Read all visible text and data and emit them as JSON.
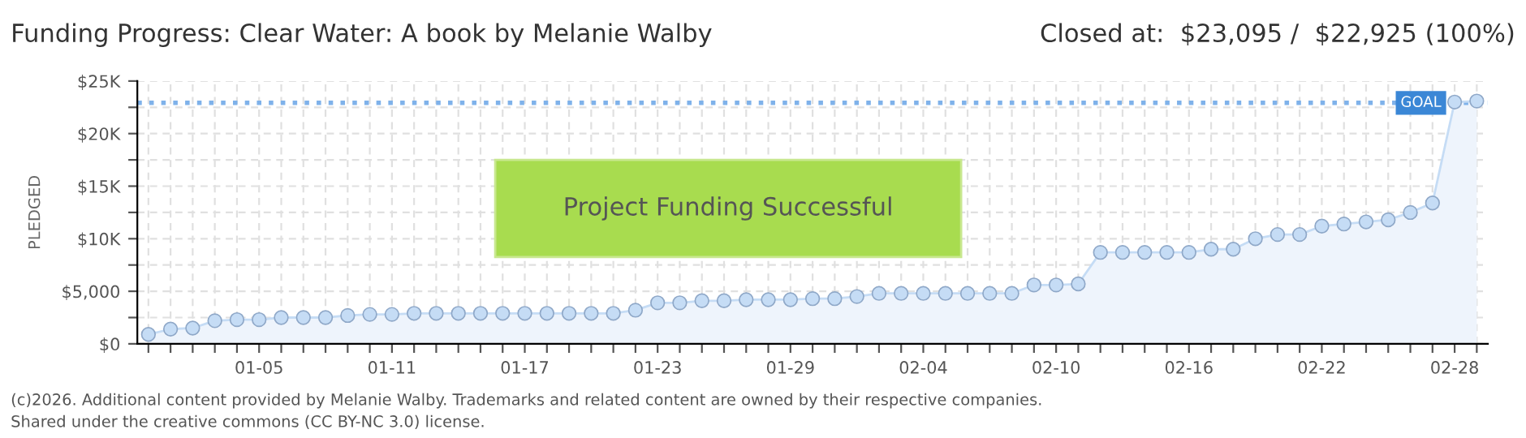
{
  "chart_data": {
    "type": "area",
    "title": "Funding Progress: Clear Water: A book by Melanie Walby",
    "subtitle": "Closed at:  $23,095 /  $22,925 (100%)",
    "ylabel": "PLEDGED",
    "categories": [
      null,
      null,
      null,
      null,
      null,
      "01-05",
      null,
      null,
      null,
      null,
      null,
      "01-11",
      null,
      null,
      null,
      null,
      null,
      "01-17",
      null,
      null,
      null,
      null,
      null,
      "01-23",
      null,
      null,
      null,
      null,
      null,
      "01-29",
      null,
      null,
      null,
      null,
      null,
      "02-04",
      null,
      null,
      null,
      null,
      null,
      "02-10",
      null,
      null,
      null,
      null,
      null,
      "02-16",
      null,
      null,
      null,
      null,
      null,
      "02-22",
      null,
      null,
      null,
      null,
      null,
      "02-28",
      null
    ],
    "series": [
      {
        "color": "#c5dcf5",
        "values": [
          900,
          1400,
          1500,
          2200,
          2300,
          2300,
          2500,
          2500,
          2500,
          2700,
          2800,
          2800,
          2900,
          2900,
          2900,
          2900,
          2900,
          2900,
          2900,
          2900,
          2900,
          2900,
          3200,
          3900,
          3900,
          4100,
          4100,
          4200,
          4200,
          4200,
          4300,
          4300,
          4500,
          4800,
          4800,
          4800,
          4800,
          4800,
          4800,
          4800,
          5600,
          5600,
          5700,
          8700,
          8700,
          8700,
          8700,
          8700,
          9000,
          9000,
          10000,
          10400,
          10400,
          11200,
          11400,
          11600,
          11800,
          12500,
          13400,
          23000,
          23095
        ]
      }
    ],
    "ylim": [
      0,
      25000
    ],
    "yticks": [
      {
        "value": 0,
        "label": "$0"
      },
      {
        "value": 2500,
        "label": null
      },
      {
        "value": 5000,
        "label": "$5,000"
      },
      {
        "value": 7500,
        "label": null
      },
      {
        "value": 10000,
        "label": "$10K"
      },
      {
        "value": 12500,
        "label": null
      },
      {
        "value": 15000,
        "label": "$15K"
      },
      {
        "value": 17500,
        "label": null
      },
      {
        "value": 20000,
        "label": "$20K"
      },
      {
        "value": 22500,
        "label": null
      },
      {
        "value": 25000,
        "label": "$25K"
      }
    ],
    "ref_lines": [
      {
        "axis": "y",
        "value": 22925,
        "label": "GOAL",
        "color": "#7fb2ea",
        "line_style": "dotted"
      }
    ],
    "grid": true,
    "marker": "circle",
    "legend": false,
    "annotations": [
      "Project Funding Successful",
      "(c)2026. Additional content provided by Melanie Walby. Trademarks and related content are owned by their respective companies.",
      "Shared under the creative commons (CC BY-NC 3.0) license."
    ]
  }
}
